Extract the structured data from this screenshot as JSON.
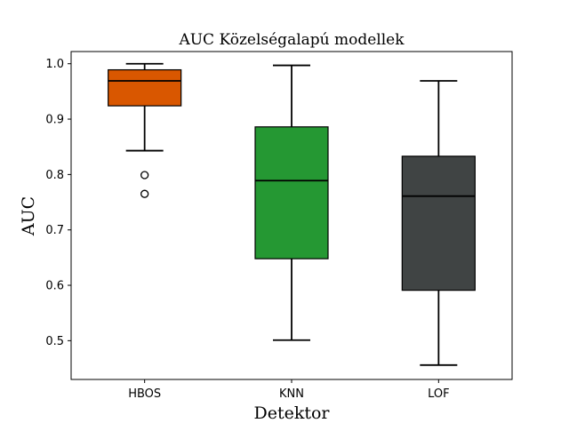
{
  "chart_data": {
    "type": "box",
    "title": "AUC Közelségalapú modellek",
    "xlabel": "Detektor",
    "ylabel": "AUC",
    "ylim": [
      0.43,
      1.022
    ],
    "yticks": [
      0.5,
      0.6,
      0.7,
      0.8,
      0.9,
      1.0
    ],
    "ytick_labels": [
      "0.5",
      "0.6",
      "0.7",
      "0.8",
      "0.9",
      "1.0"
    ],
    "grid": false,
    "categories": [
      "HBOS",
      "KNN",
      "LOF"
    ],
    "boxes": [
      {
        "name": "HBOS",
        "color": "#d95700",
        "whisker_low": 0.843,
        "q1": 0.924,
        "median": 0.969,
        "q3": 0.989,
        "whisker_high": 1.0,
        "outliers": [
          0.799,
          0.765
        ]
      },
      {
        "name": "KNN",
        "color": "#259833",
        "whisker_low": 0.501,
        "q1": 0.648,
        "median": 0.789,
        "q3": 0.886,
        "whisker_high": 0.997,
        "outliers": []
      },
      {
        "name": "LOF",
        "color": "#404444",
        "whisker_low": 0.456,
        "q1": 0.591,
        "median": 0.761,
        "q3": 0.833,
        "whisker_high": 0.969,
        "outliers": []
      }
    ]
  }
}
